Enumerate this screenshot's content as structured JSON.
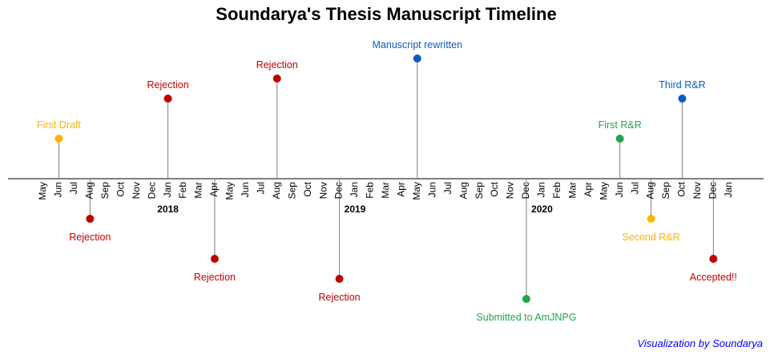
{
  "chart_data": {
    "type": "timeline",
    "title": "Soundarya's Thesis Manuscript Timeline",
    "caption": "Visualization by Soundarya",
    "axis_range": {
      "start": "2017-05",
      "end": "2021-01"
    },
    "month_labels": [
      "May",
      "Jun",
      "Jul",
      "Aug",
      "Sep",
      "Oct",
      "Nov",
      "Dec",
      "Jan",
      "Feb",
      "Mar",
      "Apr",
      "May",
      "Jun",
      "Jul",
      "Aug",
      "Sep",
      "Oct",
      "Nov",
      "Dec",
      "Jan",
      "Feb",
      "Mar",
      "Apr",
      "May",
      "Jun",
      "Jul",
      "Aug",
      "Sep",
      "Oct",
      "Nov",
      "Dec",
      "Jan",
      "Feb",
      "Mar",
      "Apr",
      "May",
      "Jun",
      "Jul",
      "Aug",
      "Sep",
      "Oct",
      "Nov",
      "Dec",
      "Jan"
    ],
    "year_labels": [
      {
        "label": "2018",
        "date": "2018-01"
      },
      {
        "label": "2019",
        "date": "2019-01"
      },
      {
        "label": "2020",
        "date": "2020-01"
      }
    ],
    "events": [
      {
        "date": "2017-06",
        "label": "First Draft",
        "height": 1,
        "status": "draft"
      },
      {
        "date": "2017-08",
        "label": "Rejection",
        "height": -1,
        "status": "rejection"
      },
      {
        "date": "2018-01",
        "label": "Rejection",
        "height": 2,
        "status": "rejection"
      },
      {
        "date": "2018-04",
        "label": "Rejection",
        "height": -2,
        "status": "rejection"
      },
      {
        "date": "2018-08",
        "label": "Rejection",
        "height": 2.5,
        "status": "rejection"
      },
      {
        "date": "2018-12",
        "label": "Rejection",
        "height": -2.5,
        "status": "rejection"
      },
      {
        "date": "2019-05",
        "label": "Manuscript rewritten",
        "height": 3,
        "status": "rewrite"
      },
      {
        "date": "2019-12",
        "label": "Submitted to AmJNPG",
        "height": -3,
        "status": "submitted"
      },
      {
        "date": "2020-06",
        "label": "First R&R",
        "height": 1,
        "status": "revise"
      },
      {
        "date": "2020-08",
        "label": "Second R&R",
        "height": -1,
        "status": "draft"
      },
      {
        "date": "2020-10",
        "label": "Third R&R",
        "height": 2,
        "status": "rewrite"
      },
      {
        "date": "2020-12",
        "label": "Accepted!!",
        "height": -2,
        "status": "rejection"
      }
    ],
    "status_colors": {
      "draft": "#ffb400",
      "rejection": "#c00000",
      "rewrite": "#0a5cc0",
      "submitted": "#1fa84a",
      "revise": "#1fa84a"
    }
  }
}
